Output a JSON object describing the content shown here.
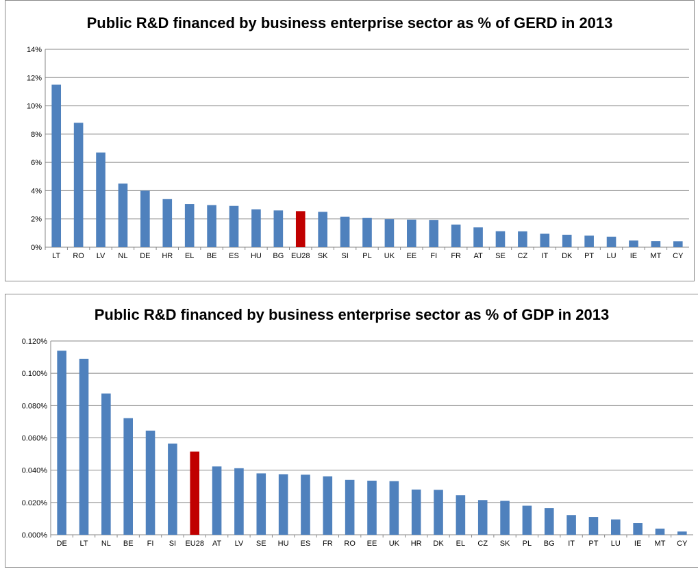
{
  "chart_data": [
    {
      "type": "bar",
      "title": "Public R&D financed by business enterprise sector as % of GERD in 2013",
      "xlabel": "",
      "ylabel": "",
      "ylim": [
        0,
        14
      ],
      "yticks": [
        "0%",
        "2%",
        "4%",
        "6%",
        "8%",
        "10%",
        "12%",
        "14%"
      ],
      "grid": true,
      "highlight_category": "EU28",
      "colors": {
        "bar": "#4f81bd",
        "highlight": "#c00000",
        "grid": "#878787"
      },
      "categories": [
        "LT",
        "RO",
        "LV",
        "NL",
        "DE",
        "HR",
        "EL",
        "BE",
        "ES",
        "HU",
        "BG",
        "EU28",
        "SK",
        "SI",
        "PL",
        "UK",
        "EE",
        "FI",
        "FR",
        "AT",
        "SE",
        "CZ",
        "IT",
        "DK",
        "PT",
        "LU",
        "IE",
        "MT",
        "CY"
      ],
      "values": [
        11.5,
        8.8,
        6.7,
        4.5,
        4.0,
        3.4,
        3.05,
        2.98,
        2.92,
        2.68,
        2.6,
        2.55,
        2.5,
        2.15,
        2.08,
        1.98,
        1.95,
        1.93,
        1.6,
        1.4,
        1.13,
        1.12,
        0.95,
        0.88,
        0.82,
        0.74,
        0.47,
        0.43,
        0.42
      ]
    },
    {
      "type": "bar",
      "title": "Public R&D financed by business enterprise sector as % of GDP in 2013",
      "xlabel": "",
      "ylabel": "",
      "ylim": [
        0,
        0.12
      ],
      "yticks": [
        "0.000%",
        "0.020%",
        "0.040%",
        "0.060%",
        "0.080%",
        "0.100%",
        "0.120%"
      ],
      "grid": true,
      "highlight_category": "EU28",
      "colors": {
        "bar": "#4f81bd",
        "highlight": "#c00000",
        "grid": "#878787"
      },
      "categories": [
        "DE",
        "LT",
        "NL",
        "BE",
        "FI",
        "SI",
        "EU28",
        "AT",
        "LV",
        "SE",
        "HU",
        "ES",
        "FR",
        "RO",
        "EE",
        "UK",
        "HR",
        "DK",
        "EL",
        "CZ",
        "SK",
        "PL",
        "BG",
        "IT",
        "PT",
        "LU",
        "IE",
        "MT",
        "CY"
      ],
      "values": [
        0.114,
        0.109,
        0.0875,
        0.0722,
        0.0645,
        0.0565,
        0.0515,
        0.0423,
        0.0412,
        0.038,
        0.0375,
        0.0372,
        0.0362,
        0.034,
        0.0335,
        0.0332,
        0.028,
        0.0278,
        0.0245,
        0.0215,
        0.021,
        0.018,
        0.0165,
        0.0122,
        0.011,
        0.0095,
        0.0072,
        0.0038,
        0.002
      ]
    }
  ]
}
